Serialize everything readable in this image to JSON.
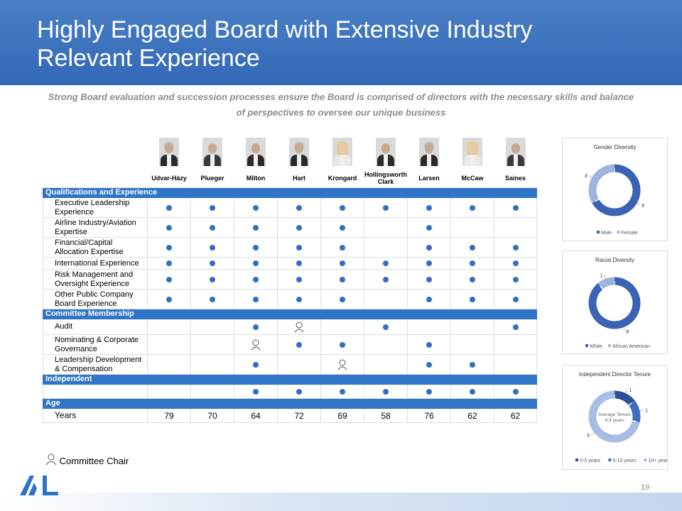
{
  "header": {
    "title_line1": "Highly Engaged Board with Extensive Industry",
    "title_line2": "Relevant Experience"
  },
  "subtitle": "Strong Board evaluation and succession processes ensure the Board is comprised of directors with the necessary skills and balance of perspectives to oversee our unique business",
  "directors": [
    "Udvar-Házy",
    "Plueger",
    "Milton",
    "Hart",
    "Krongard",
    "Hollingsworth Clark",
    "Larsen",
    "McCaw",
    "Saines"
  ],
  "sections": {
    "qualifications": "Qualifications and Experience",
    "committee": "Committee Membership",
    "independent": "Independent",
    "age": "Age"
  },
  "qualifications": [
    {
      "label": "Executive Leadership Experience",
      "marks": [
        1,
        1,
        1,
        1,
        1,
        1,
        1,
        1,
        1
      ]
    },
    {
      "label": "Airline Industry/Aviation Expertise",
      "marks": [
        1,
        1,
        1,
        1,
        1,
        0,
        1,
        0,
        0
      ]
    },
    {
      "label": "Financial/Capital Allocation Expertise",
      "marks": [
        1,
        1,
        1,
        1,
        1,
        0,
        1,
        1,
        1
      ]
    },
    {
      "label": "International Experience",
      "marks": [
        1,
        1,
        1,
        1,
        1,
        1,
        1,
        1,
        1
      ]
    },
    {
      "label": "Risk Management and Oversight Experience",
      "marks": [
        1,
        1,
        1,
        1,
        1,
        1,
        1,
        1,
        1
      ]
    },
    {
      "label": "Other Public Company Board Experience",
      "marks": [
        1,
        1,
        1,
        1,
        1,
        0,
        1,
        1,
        1
      ]
    }
  ],
  "committees": [
    {
      "label": "Audit",
      "marks": [
        0,
        0,
        1,
        2,
        0,
        1,
        0,
        0,
        1
      ]
    },
    {
      "label": "Nominating & Corporate Governance",
      "marks": [
        0,
        0,
        2,
        1,
        1,
        0,
        1,
        0,
        0
      ]
    },
    {
      "label": "Leadership Development & Compensation",
      "marks": [
        0,
        0,
        1,
        0,
        2,
        0,
        1,
        1,
        0
      ]
    }
  ],
  "independent_marks": [
    0,
    0,
    1,
    1,
    1,
    1,
    1,
    1,
    1
  ],
  "age": {
    "label": "Years",
    "values": [
      "79",
      "70",
      "64",
      "72",
      "69",
      "58",
      "76",
      "62",
      "62"
    ]
  },
  "legend": {
    "chair_label": "Committee Chair"
  },
  "page_number": "19",
  "colors": {
    "header": "#3a70bb",
    "section_bar": "#2f74c6",
    "dot": "#2f6fc6",
    "donut_dark": "#3a63b3",
    "donut_light": "#9fb4dd"
  },
  "chart_data": [
    {
      "type": "pie",
      "title": "Gender Diversity",
      "categories": [
        "Male",
        "Female"
      ],
      "values": [
        6,
        3
      ],
      "data_labels": [
        "6",
        "3"
      ],
      "legend": "bottom"
    },
    {
      "type": "pie",
      "title": "Racial Diversity",
      "categories": [
        "White",
        "African American"
      ],
      "values": [
        8,
        1
      ],
      "data_labels": [
        "8",
        "1"
      ],
      "legend": "bottom"
    },
    {
      "type": "pie",
      "title": "Independent Director Tenure",
      "categories": [
        "0-5 years",
        "5-10 years",
        "10+ years"
      ],
      "values": [
        1,
        1,
        5
      ],
      "data_labels": [
        "1",
        "1",
        "5"
      ],
      "center_label_line1": "Average Tenure",
      "center_label_line2": "8.9 years",
      "legend": "bottom"
    }
  ]
}
